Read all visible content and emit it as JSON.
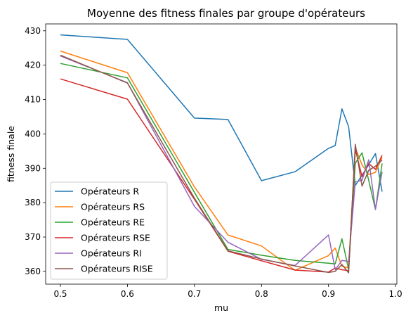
{
  "chart_data": {
    "type": "line",
    "title": "Moyenne des fitness finales par groupe d'opérateurs",
    "xlabel": "mu",
    "ylabel": "fitness finale",
    "xlim": [
      0.478,
      1.002
    ],
    "ylim": [
      356.3,
      432.0
    ],
    "xticks": [
      0.5,
      0.6,
      0.7,
      0.8,
      0.9,
      1.0
    ],
    "xtick_labels": [
      "0.5",
      "0.6",
      "0.7",
      "0.8",
      "0.9",
      "1.0"
    ],
    "yticks": [
      360,
      370,
      380,
      390,
      400,
      410,
      420,
      430
    ],
    "ytick_labels": [
      "360",
      "370",
      "380",
      "390",
      "400",
      "410",
      "420",
      "430"
    ],
    "grid": false,
    "legend_position": "lower-left",
    "x": [
      0.5,
      0.6,
      0.7,
      0.75,
      0.8,
      0.85,
      0.9,
      0.91,
      0.92,
      0.93,
      0.94,
      0.95,
      0.96,
      0.97,
      0.98
    ],
    "series": [
      {
        "name": "Opérateurs R",
        "color": "#1f77b4",
        "values": [
          428.8,
          427.5,
          404.6,
          404.2,
          386.4,
          389.0,
          395.8,
          396.6,
          407.3,
          402.1,
          385.0,
          388.0,
          391.0,
          394.3,
          383.2
        ]
      },
      {
        "name": "Opérateurs RS",
        "color": "#ff7f0e",
        "values": [
          424.1,
          417.8,
          384.6,
          370.6,
          367.4,
          360.3,
          364.6,
          366.8,
          361.5,
          361.0,
          396.0,
          391.0,
          388.2,
          388.8,
          393.2
        ]
      },
      {
        "name": "Opérateurs RE",
        "color": "#2ca02c",
        "values": [
          420.5,
          416.3,
          383.0,
          366.4,
          364.7,
          363.2,
          362.4,
          362.2,
          369.5,
          360.6,
          391.5,
          394.5,
          386.5,
          378.0,
          391.4
        ]
      },
      {
        "name": "Opérateurs RSE",
        "color": "#d62728",
        "values": [
          416.0,
          410.1,
          381.0,
          365.9,
          363.1,
          360.4,
          359.8,
          361.0,
          360.5,
          360.2,
          395.5,
          387.6,
          391.4,
          389.7,
          393.8
        ]
      },
      {
        "name": "Opérateurs RI",
        "color": "#9467bd",
        "values": [
          422.7,
          414.9,
          378.9,
          368.5,
          363.5,
          361.7,
          370.6,
          360.5,
          363.2,
          362.9,
          386.0,
          386.5,
          392.5,
          378.0,
          389.0
        ]
      },
      {
        "name": "Opérateurs RISE",
        "color": "#8c564b",
        "values": [
          422.9,
          414.8,
          381.3,
          366.0,
          363.6,
          361.6,
          359.7,
          360.0,
          362.0,
          359.6,
          397.0,
          384.8,
          389.4,
          390.6,
          392.4
        ]
      }
    ]
  }
}
